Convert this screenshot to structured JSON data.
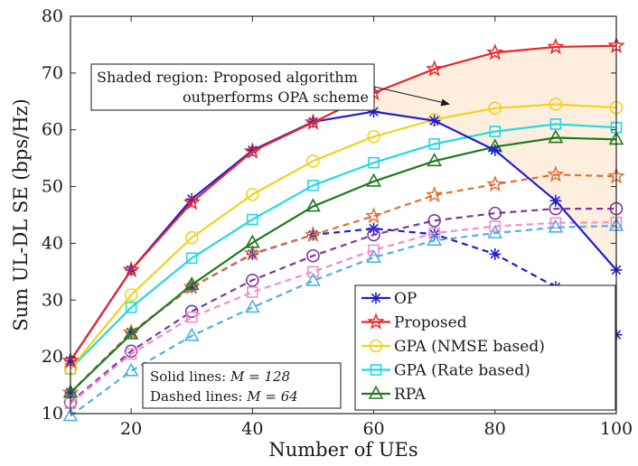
{
  "chart_data": {
    "type": "line",
    "xlabel": "Number of UEs",
    "ylabel": "Sum UL-DL SE (bps/Hz)",
    "xlim": [
      10,
      100
    ],
    "ylim": [
      10,
      80
    ],
    "xticks": [
      20,
      40,
      60,
      80,
      100
    ],
    "yticks": [
      10,
      20,
      30,
      40,
      50,
      60,
      70,
      80
    ],
    "x": [
      10,
      20,
      30,
      40,
      50,
      60,
      70,
      80,
      90,
      100
    ],
    "grid": false,
    "legend_position": "bottom-right",
    "shaded_region": {
      "between": [
        "Proposed",
        "OP"
      ],
      "from_x": 60,
      "color": "#fdeede"
    },
    "series": [
      {
        "name": "OP",
        "style": "solid",
        "color": "#1f1fd1",
        "marker": "asterisk",
        "values": [
          19.3,
          35.3,
          47.8,
          56.4,
          61.4,
          63.2,
          61.6,
          56.4,
          47.5,
          35.3
        ]
      },
      {
        "name": "Proposed",
        "style": "solid",
        "color": "#e8262a",
        "marker": "star",
        "values": [
          19.3,
          35.3,
          47.2,
          56.2,
          61.3,
          66.5,
          70.7,
          73.6,
          74.6,
          74.8
        ]
      },
      {
        "name": "GPA (NMSE based)",
        "style": "solid",
        "color": "#f2d21c",
        "marker": "circle",
        "values": [
          17.9,
          30.9,
          41.0,
          48.6,
          54.5,
          58.8,
          61.8,
          63.8,
          64.5,
          63.9
        ]
      },
      {
        "name": "GPA (Rate based)",
        "style": "solid",
        "color": "#22d8e8",
        "marker": "square",
        "values": [
          17.9,
          28.7,
          37.4,
          44.2,
          50.2,
          54.2,
          57.5,
          59.7,
          61.0,
          60.4
        ]
      },
      {
        "name": "RPA",
        "style": "solid",
        "color": "#1e7a1e",
        "marker": "triangle",
        "values": [
          13.7,
          24.0,
          32.7,
          40.1,
          46.5,
          50.9,
          54.5,
          57.0,
          58.6,
          58.3
        ]
      },
      {
        "name": "",
        "style": "dashed",
        "color": "#1f1fd1",
        "marker": "asterisk",
        "values": [
          13.7,
          24.3,
          32.3,
          38.1,
          41.5,
          42.6,
          41.6,
          38.1,
          32.3,
          23.9
        ]
      },
      {
        "name": "",
        "style": "dashed",
        "color": "#e0703a",
        "marker": "star",
        "values": [
          13.7,
          24.3,
          32.3,
          38.2,
          41.5,
          44.8,
          48.5,
          50.4,
          52.1,
          51.8
        ]
      },
      {
        "name": "",
        "style": "dashed",
        "color": "#7a3a9a",
        "marker": "circle",
        "values": [
          12.0,
          21.0,
          28.0,
          33.5,
          37.8,
          41.5,
          44.0,
          45.3,
          46.1,
          46.1
        ]
      },
      {
        "name": "",
        "style": "dashed",
        "color": "#f08fc8",
        "marker": "square",
        "values": [
          11.8,
          20.5,
          27.0,
          31.4,
          35.0,
          38.8,
          41.8,
          43.0,
          43.6,
          43.7
        ]
      },
      {
        "name": "",
        "style": "dashed",
        "color": "#4fb0e0",
        "marker": "triangle",
        "values": [
          9.6,
          17.5,
          23.7,
          28.7,
          33.4,
          37.5,
          40.5,
          41.8,
          42.8,
          43.1
        ]
      }
    ]
  },
  "annotation": {
    "line1": "Shaded region: Proposed algorithm",
    "line2": "outperforms OPA scheme"
  },
  "note": {
    "line1_prefix": "Solid lines: ",
    "line1_value": "M = 128",
    "line2_prefix": "Dashed lines: ",
    "line2_value": "M = 64"
  }
}
